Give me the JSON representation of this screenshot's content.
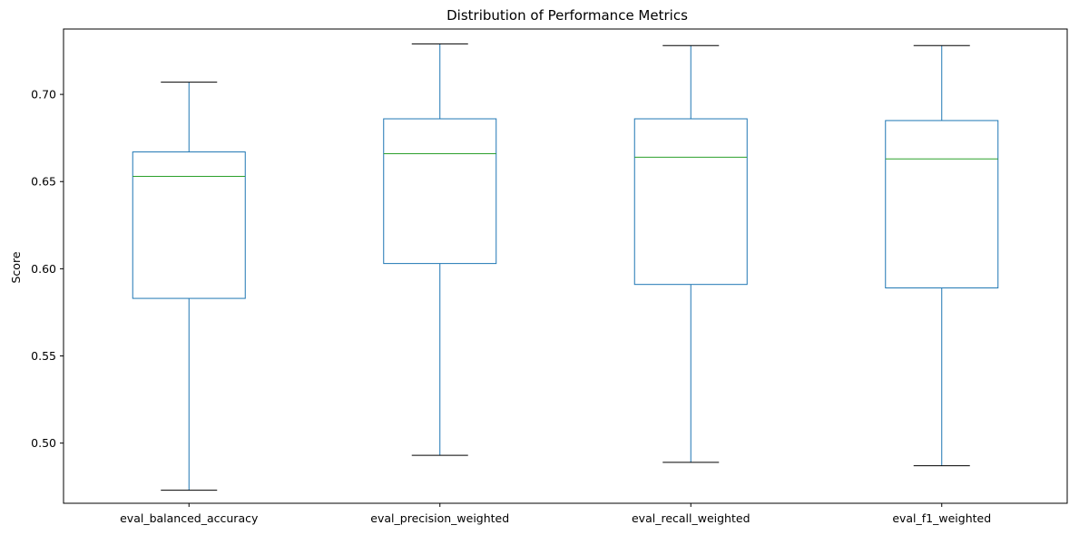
{
  "chart_data": {
    "type": "box",
    "title": "Distribution of Performance Metrics",
    "xlabel": "",
    "ylabel": "Score",
    "ylim": [
      0.4655,
      0.7375
    ],
    "yticks": [
      0.5,
      0.55,
      0.6,
      0.65,
      0.7
    ],
    "ytick_labels": [
      "0.50",
      "0.55",
      "0.60",
      "0.65",
      "0.70"
    ],
    "grid": false,
    "legend": "none",
    "box_color": "#1f77b4",
    "median_color": "#2ca02c",
    "cap_color": "#000000",
    "categories": [
      "eval_balanced_accuracy",
      "eval_precision_weighted",
      "eval_recall_weighted",
      "eval_f1_weighted"
    ],
    "boxes": [
      {
        "whisker_low": 0.473,
        "q1": 0.583,
        "median": 0.653,
        "q3": 0.667,
        "whisker_high": 0.707
      },
      {
        "whisker_low": 0.493,
        "q1": 0.603,
        "median": 0.666,
        "q3": 0.686,
        "whisker_high": 0.729
      },
      {
        "whisker_low": 0.489,
        "q1": 0.591,
        "median": 0.664,
        "q3": 0.686,
        "whisker_high": 0.728
      },
      {
        "whisker_low": 0.487,
        "q1": 0.589,
        "median": 0.663,
        "q3": 0.685,
        "whisker_high": 0.728
      }
    ]
  }
}
